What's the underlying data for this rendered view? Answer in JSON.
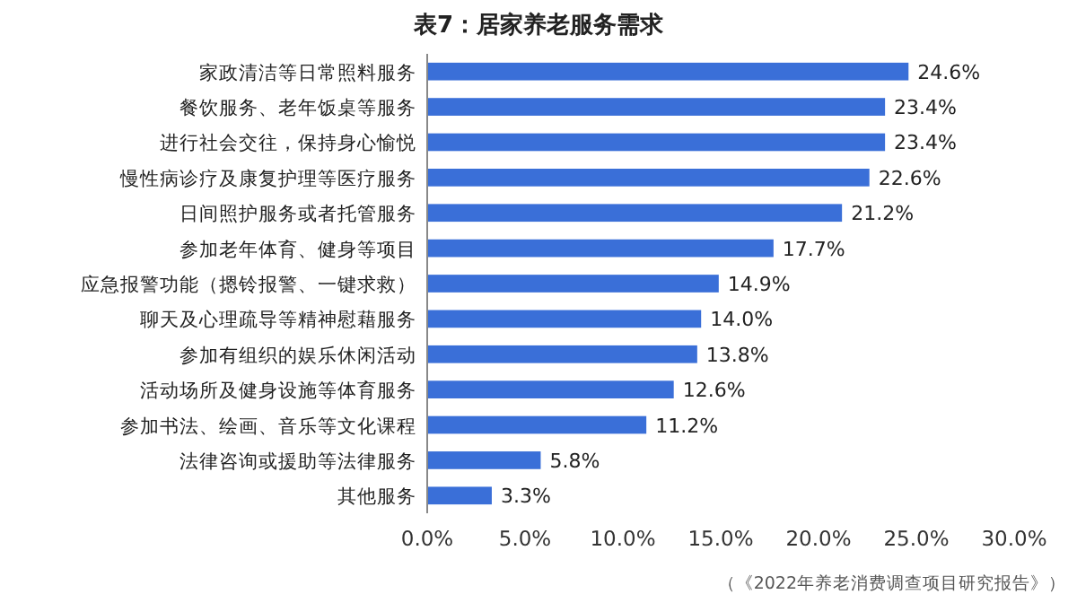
{
  "chart_data": {
    "type": "bar",
    "orientation": "horizontal",
    "title": "表7：居家养老服务需求",
    "categories": [
      "家政清洁等日常照料服务",
      "餐饮服务、老年饭桌等服务",
      "进行社会交往，保持身心愉悦",
      "慢性病诊疗及康复护理等医疗服务",
      "日间照护服务或者托管服务",
      "参加老年体育、健身等项目",
      "应急报警功能（摁铃报警、一键求救）",
      "聊天及心理疏导等精神慰藉服务",
      "参加有组织的娱乐休闲活动",
      "活动场所及健身设施等体育服务",
      "参加书法、绘画、音乐等文化课程",
      "法律咨询或援助等法律服务",
      "其他服务"
    ],
    "values": [
      24.6,
      23.4,
      23.4,
      22.6,
      21.2,
      17.7,
      14.9,
      14.0,
      13.8,
      12.6,
      11.2,
      5.8,
      3.3
    ],
    "value_labels": [
      "24.6%",
      "23.4%",
      "23.4%",
      "22.6%",
      "21.2%",
      "17.7%",
      "14.9%",
      "14.0%",
      "13.8%",
      "12.6%",
      "11.2%",
      "5.8%",
      "3.3%"
    ],
    "color": "#3a6fd8",
    "xlim": [
      0,
      30
    ],
    "xticks": [
      {
        "value": 0,
        "label": "0.0%"
      },
      {
        "value": 5,
        "label": "5.0%"
      },
      {
        "value": 10,
        "label": "10.0%"
      },
      {
        "value": 15,
        "label": "15.0%"
      },
      {
        "value": 20,
        "label": "20.0%"
      },
      {
        "value": 25,
        "label": "25.0%"
      },
      {
        "value": 30,
        "label": "30.0%"
      }
    ],
    "grid": false,
    "annotations": [
      "（《2022年养老消费调查项目研究报告》）"
    ]
  }
}
